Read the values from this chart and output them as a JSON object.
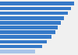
{
  "values": [
    97,
    93,
    89,
    84,
    80,
    76,
    72,
    67,
    61,
    55,
    46
  ],
  "bar_color": "#3579c8",
  "last_bar_color": "#a8c4e8",
  "background_color": "#f0f0f0",
  "bar_height": 0.78,
  "xlim": [
    0,
    100
  ],
  "n_bars": 11
}
